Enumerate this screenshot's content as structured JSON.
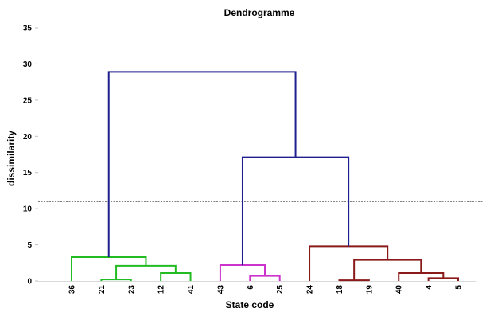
{
  "chart_data": {
    "type": "dendrogram",
    "title": "Dendrogramme",
    "xlabel": "State code",
    "ylabel": "dissimilarity",
    "ylim": [
      0,
      35
    ],
    "yticks": [
      0,
      5,
      10,
      15,
      20,
      25,
      30,
      35
    ],
    "grid": false,
    "leaves": [
      "36",
      "21",
      "23",
      "12",
      "41",
      "43",
      "6",
      "25",
      "24",
      "18",
      "19",
      "40",
      "4",
      "5"
    ],
    "cut_line": 11,
    "clusters": [
      {
        "name": "cluster-1",
        "color": "#22bb22",
        "leaves": [
          "36",
          "21",
          "23",
          "12",
          "41"
        ]
      },
      {
        "name": "cluster-2",
        "color": "#cc33cc",
        "leaves": [
          "43",
          "6",
          "25"
        ]
      },
      {
        "name": "cluster-3",
        "color": "#8b1a1a",
        "leaves": [
          "24",
          "18",
          "19",
          "40",
          "4",
          "5"
        ]
      }
    ],
    "upper_color": "#1f1f8f",
    "merges": [
      {
        "id": "m1",
        "left": "21",
        "right": "23",
        "height": 0.2,
        "color": "#22bb22"
      },
      {
        "id": "m2",
        "left": "12",
        "right": "41",
        "height": 1.1,
        "color": "#22bb22"
      },
      {
        "id": "m3",
        "left": "m1",
        "right": "m2",
        "height": 2.1,
        "color": "#22bb22"
      },
      {
        "id": "m4",
        "left": "36",
        "right": "m3",
        "height": 3.3,
        "color": "#22bb22"
      },
      {
        "id": "m5",
        "left": "6",
        "right": "25",
        "height": 0.7,
        "color": "#cc33cc"
      },
      {
        "id": "m6",
        "left": "43",
        "right": "m5",
        "height": 2.2,
        "color": "#cc33cc"
      },
      {
        "id": "m7",
        "left": "18",
        "right": "19",
        "height": 0.1,
        "color": "#8b1a1a"
      },
      {
        "id": "m8",
        "left": "4",
        "right": "5",
        "height": 0.4,
        "color": "#8b1a1a"
      },
      {
        "id": "m9",
        "left": "40",
        "right": "m8",
        "height": 1.1,
        "color": "#8b1a1a"
      },
      {
        "id": "m10",
        "left": "m7",
        "right": "m9",
        "height": 2.9,
        "color": "#8b1a1a"
      },
      {
        "id": "m11",
        "left": "24",
        "right": "m10",
        "height": 4.8,
        "color": "#8b1a1a"
      },
      {
        "id": "m12",
        "left": "m6",
        "right": "m11",
        "height": 17.1,
        "color": "#1f1f8f"
      },
      {
        "id": "m13",
        "left": "m4",
        "right": "m12",
        "height": 28.9,
        "color": "#1f1f8f"
      }
    ]
  }
}
